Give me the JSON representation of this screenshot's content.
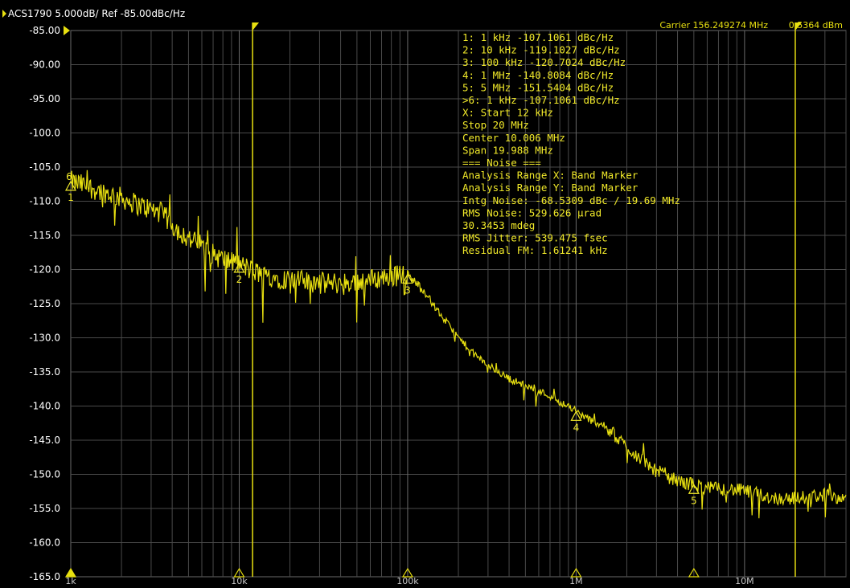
{
  "header": {
    "trace_label": "ACS1790 5.000dB/ Ref -85.00dBc/Hz",
    "carrier": "Carrier 156.249274 MHz",
    "power": "0.5364 dBm"
  },
  "colors": {
    "background": "#000000",
    "trace": "#e8e010",
    "grid": "#4a4a4a",
    "text": "#ffffff",
    "marker_text": "#f2ea2a"
  },
  "marker_table": [
    "1:   1 kHz     -107.1061 dBc/Hz",
    "2:   10 kHz    -119.1027 dBc/Hz",
    "3:   100 kHz   -120.7024 dBc/Hz",
    "4:   1 MHz     -140.8084 dBc/Hz",
    "5:   5 MHz     -151.5404 dBc/Hz",
    ">6:  1 kHz     -107.1061 dBc/Hz",
    " X: Start 12 kHz",
    "       Stop 20 MHz",
    "     Center 10.006 MHz",
    "       Span 19.988 MHz",
    "=== Noise ===",
    "Analysis Range X: Band Marker",
    "Analysis Range Y: Band Marker",
    "Intg Noise: -68.5309 dBc / 19.69 MHz",
    " RMS Noise: 529.626 µrad",
    "            30.3453 mdeg",
    "RMS Jitter: 539.475 fsec",
    "Residual FM: 1.61241 kHz"
  ],
  "chart_data": {
    "type": "line",
    "x_scale": "log",
    "xlim": [
      1000,
      40000000
    ],
    "ylim": [
      -165,
      -85
    ],
    "grid": true,
    "y_ticks": [
      "-85.00",
      "-90.00",
      "-95.00",
      "-100.0",
      "-105.0",
      "-110.0",
      "-115.0",
      "-120.0",
      "-125.0",
      "-130.0",
      "-135.0",
      "-140.0",
      "-145.0",
      "-150.0",
      "-155.0",
      "-160.0",
      "-165.0"
    ],
    "x_ticks": [
      {
        "label": "1k",
        "x": 1000
      },
      {
        "label": "10k",
        "x": 10000
      },
      {
        "label": "100k",
        "x": 100000
      },
      {
        "label": "1M",
        "x": 1000000
      },
      {
        "label": "10M",
        "x": 10000000
      }
    ],
    "band_markers_hz": [
      12000,
      20000000
    ],
    "markers": [
      {
        "label": "1",
        "x": 1000,
        "y": -107.1
      },
      {
        "label": "2",
        "x": 10000,
        "y": -119.1
      },
      {
        "label": "3",
        "x": 100000,
        "y": -120.7
      },
      {
        "label": "4",
        "x": 1000000,
        "y": -140.8
      },
      {
        "label": "5",
        "x": 5000000,
        "y": -151.5
      },
      {
        "label": "6",
        "x": 1000,
        "y": -107.1
      }
    ],
    "series": [
      {
        "x": [
          1000,
          1500,
          2000,
          2500,
          3000,
          3500,
          4000,
          5000,
          6000,
          7000,
          8000,
          10000,
          12000,
          15000,
          20000,
          30000,
          40000,
          50000,
          60000,
          70000,
          80000,
          90000,
          100000,
          120000,
          150000,
          200000,
          250000,
          300000,
          400000,
          500000,
          700000,
          1000000,
          1200000,
          1500000,
          2000000,
          2500000,
          3000000,
          4000000,
          5000000,
          6000000,
          8000000,
          10000000,
          15000000,
          20000000,
          30000000,
          40000000
        ],
        "y": [
          -107.1,
          -108.5,
          -109.5,
          -110.5,
          -111.2,
          -111.8,
          -113.5,
          -115.5,
          -116.5,
          -117.8,
          -118.5,
          -119.2,
          -120.2,
          -121.0,
          -121.5,
          -122.0,
          -122.0,
          -121.8,
          -121.5,
          -121.2,
          -121.0,
          -120.8,
          -120.8,
          -122.5,
          -126.0,
          -130.0,
          -132.5,
          -134.0,
          -136.0,
          -137.0,
          -138.5,
          -140.8,
          -142.0,
          -143.0,
          -146.0,
          -148.0,
          -149.5,
          -151.0,
          -151.5,
          -152.0,
          -152.2,
          -152.4,
          -153.5,
          -153.5,
          -153.0,
          -153.5
        ]
      }
    ]
  }
}
